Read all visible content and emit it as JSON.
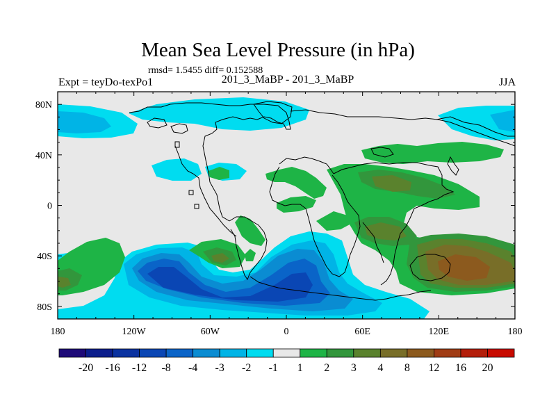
{
  "title": "Mean Sea Level Pressure (in hPa)",
  "stats": "rmsd= 1.5455 diff= 0.152588",
  "left_label": "Expt = teyDo-texPo1",
  "center_label": "201_3_MaBP - 201_3_MaBP",
  "right_label": "JJA",
  "map": {
    "lon_range": [
      -180,
      180
    ],
    "lat_range": [
      -90,
      90
    ],
    "lon_ticks": [
      {
        "value": -180,
        "label": "180"
      },
      {
        "value": -120,
        "label": "120W"
      },
      {
        "value": -60,
        "label": "60W"
      },
      {
        "value": 0,
        "label": "0"
      },
      {
        "value": 60,
        "label": "60E"
      },
      {
        "value": 120,
        "label": "120E"
      },
      {
        "value": 180,
        "label": "180"
      }
    ],
    "lat_ticks": [
      {
        "value": 80,
        "label": "80N"
      },
      {
        "value": 40,
        "label": "40N"
      },
      {
        "value": 0,
        "label": "0"
      },
      {
        "value": -40,
        "label": "40S"
      },
      {
        "value": -80,
        "label": "80S"
      }
    ],
    "background_color": "#e8e8e8"
  },
  "colorbar": {
    "labels": [
      "-20",
      "-16",
      "-12",
      "-8",
      "-4",
      "-3",
      "-2",
      "-1",
      "1",
      "2",
      "3",
      "4",
      "8",
      "12",
      "16",
      "20"
    ],
    "colors": [
      "#1e0a78",
      "#0c1e8c",
      "#0a32a0",
      "#0a46b4",
      "#0a64c8",
      "#0a8cd2",
      "#00b4e6",
      "#00dcf0",
      "#e8e8e8",
      "#1eb446",
      "#32963c",
      "#5a822d",
      "#786e28",
      "#8c5a1e",
      "#a03c14",
      "#b41e0a",
      "#c80a00"
    ]
  }
}
